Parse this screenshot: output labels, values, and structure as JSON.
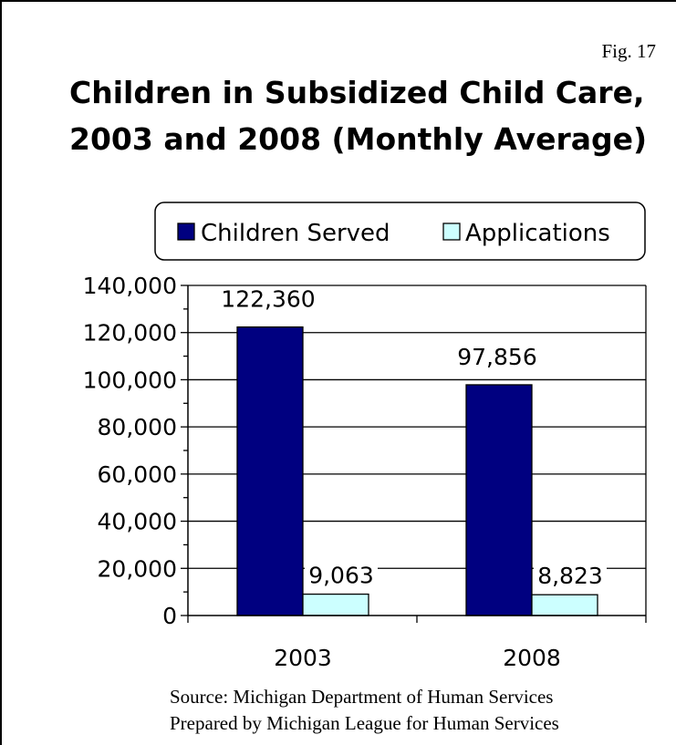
{
  "figure_label": "Fig. 17",
  "title_lines": [
    "Children in Subsidized Child Care,",
    "2003 and 2008 (Monthly Average)"
  ],
  "source_lines": [
    "Source:  Michigan Department of Human Services",
    "Prepared by Michigan League for Human Services"
  ],
  "chart_data": {
    "type": "bar",
    "title": "Children in Subsidized Child Care, 2003 and 2008 (Monthly Average)",
    "categories": [
      "2003",
      "2008"
    ],
    "series": [
      {
        "name": "Children Served",
        "values": [
          122360,
          97856
        ],
        "labels": [
          "122,360",
          "97,856"
        ],
        "color": "#000080"
      },
      {
        "name": "Applications",
        "values": [
          9063,
          8823
        ],
        "labels": [
          "9,063",
          "8,823"
        ],
        "color": "#ccffff"
      }
    ],
    "ylim": [
      0,
      140000
    ],
    "yticks": [
      0,
      20000,
      40000,
      60000,
      80000,
      100000,
      120000,
      140000
    ],
    "ytick_labels": [
      "0",
      "20,000",
      "40,000",
      "60,000",
      "80,000",
      "100,000",
      "120,000",
      "140,000"
    ],
    "xlabel": "",
    "ylabel": "",
    "grid": true,
    "legend_position": "top"
  }
}
